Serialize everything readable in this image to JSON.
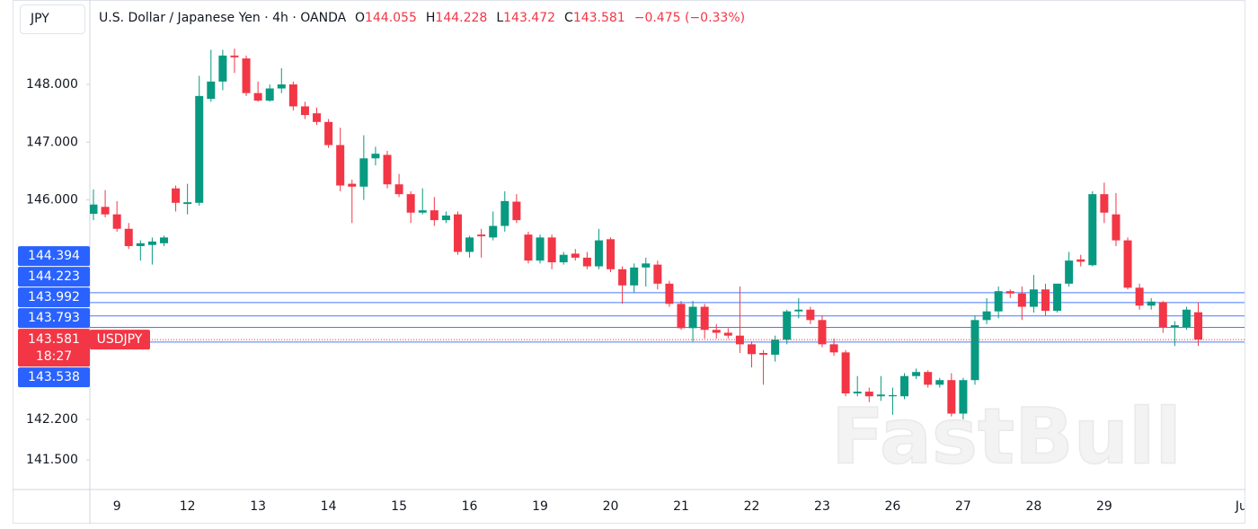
{
  "chart_data": {
    "type": "candlestick",
    "symbol_box": "JPY",
    "title": "U.S. Dollar / Japanese Yen · 4h · OANDA",
    "ohlc_letters": [
      "O",
      "H",
      "L",
      "C"
    ],
    "change": "−0.475 (−0.33%)",
    "watermark": "FastBull",
    "up_color": "#089981",
    "down_color": "#f23645",
    "level_color": "#2962ff",
    "categories": [
      null,
      null,
      "9",
      null,
      null,
      null,
      null,
      null,
      "12",
      null,
      null,
      null,
      null,
      null,
      "13",
      null,
      null,
      null,
      null,
      null,
      "14",
      null,
      null,
      null,
      null,
      null,
      "15",
      null,
      null,
      null,
      null,
      null,
      "16",
      null,
      null,
      null,
      null,
      null,
      "19",
      null,
      null,
      null,
      null,
      null,
      "20",
      null,
      null,
      null,
      null,
      null,
      "21",
      null,
      null,
      null,
      null,
      null,
      "22",
      null,
      null,
      null,
      null,
      null,
      "23",
      null,
      null,
      null,
      null,
      null,
      "26",
      null,
      null,
      null,
      null,
      null,
      "27",
      null,
      null,
      null,
      null,
      null,
      "28",
      null,
      null,
      null,
      null,
      null,
      "29",
      null,
      null,
      null,
      null,
      null,
      null,
      null,
      null,
      null,
      null,
      null,
      "Jun"
    ],
    "open": [
      145.76,
      145.88,
      145.75,
      145.5,
      145.2,
      145.22,
      145.25,
      146.2,
      145.93,
      145.95,
      147.75,
      148.05,
      148.5,
      148.45,
      147.85,
      147.72,
      147.93,
      148.0,
      147.62,
      147.5,
      147.35,
      146.95,
      146.28,
      146.23,
      146.72,
      146.78,
      146.27,
      146.1,
      145.78,
      145.82,
      145.65,
      145.75,
      145.1,
      145.4,
      145.35,
      145.55,
      145.97,
      145.4,
      144.95,
      145.35,
      144.92,
      145.07,
      145.0,
      144.85,
      145.32,
      144.8,
      144.52,
      144.83,
      144.88,
      144.55,
      144.2,
      143.78,
      144.15,
      143.75,
      143.7,
      143.65,
      143.5,
      143.35,
      143.32,
      143.58,
      144.07,
      144.1,
      143.92,
      143.5,
      143.36,
      142.65,
      142.68,
      142.6,
      142.6,
      142.6,
      142.95,
      143.02,
      142.8,
      142.88,
      142.3,
      142.88,
      143.92,
      144.07,
      144.42,
      144.38,
      144.15,
      144.45,
      144.08,
      144.55,
      144.97,
      144.87,
      146.1,
      145.75,
      145.3,
      144.48,
      144.17,
      144.23,
      143.8,
      143.8,
      144.055,
      null,
      null,
      null,
      null
    ],
    "high": [
      146.18,
      146.17,
      145.98,
      145.6,
      145.3,
      145.35,
      145.38,
      146.25,
      146.28,
      148.15,
      148.6,
      148.6,
      148.62,
      148.5,
      148.05,
      148.0,
      148.28,
      148.05,
      147.7,
      147.6,
      147.4,
      147.25,
      146.35,
      147.12,
      146.92,
      146.85,
      146.45,
      146.15,
      146.2,
      146.05,
      145.8,
      145.8,
      145.38,
      145.5,
      145.8,
      146.15,
      146.1,
      145.45,
      145.4,
      145.4,
      145.1,
      145.15,
      145.1,
      145.5,
      145.35,
      144.85,
      144.9,
      145.0,
      144.95,
      144.6,
      144.25,
      144.25,
      144.2,
      143.85,
      143.78,
      144.5,
      143.55,
      143.4,
      143.65,
      144.1,
      144.3,
      144.15,
      144.0,
      143.6,
      143.4,
      142.95,
      142.75,
      142.95,
      142.75,
      143.0,
      143.08,
      143.05,
      142.92,
      143.0,
      142.92,
      144.0,
      144.3,
      144.5,
      144.45,
      144.5,
      144.7,
      144.55,
      144.55,
      145.1,
      145.05,
      146.15,
      146.3,
      146.12,
      145.35,
      144.55,
      144.3,
      144.25,
      143.9,
      144.15,
      144.228,
      null,
      null,
      null,
      null
    ],
    "low": [
      145.65,
      145.7,
      145.45,
      145.15,
      144.95,
      144.88,
      145.2,
      145.8,
      145.75,
      145.9,
      147.7,
      147.9,
      148.2,
      147.8,
      147.7,
      147.7,
      147.85,
      147.55,
      147.4,
      147.3,
      146.9,
      146.15,
      145.6,
      146.0,
      146.6,
      146.2,
      146.05,
      145.6,
      145.75,
      145.55,
      145.6,
      145.05,
      145.0,
      145.0,
      145.3,
      145.45,
      145.6,
      144.9,
      144.9,
      144.8,
      144.88,
      144.95,
      144.8,
      144.8,
      144.75,
      144.2,
      144.4,
      144.5,
      144.45,
      144.15,
      143.75,
      143.55,
      143.6,
      143.6,
      143.6,
      143.35,
      143.1,
      142.8,
      143.2,
      143.5,
      143.95,
      143.85,
      143.45,
      143.3,
      142.6,
      142.6,
      142.5,
      142.52,
      142.28,
      142.55,
      142.9,
      142.75,
      142.75,
      142.25,
      142.2,
      142.8,
      143.85,
      143.95,
      144.3,
      143.92,
      144.05,
      144.0,
      144.05,
      144.5,
      144.85,
      144.85,
      145.6,
      145.2,
      144.45,
      144.1,
      144.1,
      143.7,
      143.47,
      143.75,
      143.472,
      null,
      null,
      null,
      null
    ],
    "close": [
      145.92,
      145.75,
      145.5,
      145.2,
      145.25,
      145.28,
      145.35,
      145.95,
      145.96,
      147.8,
      148.05,
      148.5,
      148.47,
      147.85,
      147.72,
      147.93,
      148.0,
      147.62,
      147.47,
      147.35,
      146.95,
      146.25,
      146.23,
      146.72,
      146.8,
      146.27,
      146.1,
      145.78,
      145.82,
      145.65,
      145.73,
      145.1,
      145.35,
      145.37,
      145.55,
      145.98,
      145.65,
      144.95,
      145.35,
      144.92,
      145.05,
      145.0,
      144.85,
      145.3,
      144.8,
      144.52,
      144.83,
      144.9,
      144.55,
      144.2,
      143.78,
      144.15,
      143.75,
      143.7,
      143.65,
      143.5,
      143.33,
      143.32,
      143.58,
      144.07,
      144.1,
      143.92,
      143.5,
      143.36,
      142.65,
      142.68,
      142.6,
      142.63,
      142.62,
      142.95,
      143.02,
      142.8,
      142.88,
      142.3,
      142.88,
      143.92,
      144.07,
      144.42,
      144.38,
      144.15,
      144.45,
      144.08,
      144.55,
      144.95,
      144.93,
      146.1,
      145.78,
      145.3,
      144.48,
      144.17,
      144.24,
      143.8,
      143.83,
      144.1,
      143.581,
      null,
      null,
      null,
      null
    ],
    "ylim": [
      140.986,
      149.462
    ],
    "yticks": [
      {
        "value": 148,
        "label": "148.000"
      },
      {
        "value": 147,
        "label": "147.000"
      },
      {
        "value": 146,
        "label": "146.000"
      },
      {
        "value": 142.2,
        "label": "142.200"
      },
      {
        "value": 141.5,
        "label": "141.500"
      }
    ],
    "price_lines": [
      144.394,
      144.223,
      143.992,
      143.793,
      143.538
    ],
    "last_price": {
      "symbol": "USDJPY",
      "countdown": "18:27"
    }
  }
}
